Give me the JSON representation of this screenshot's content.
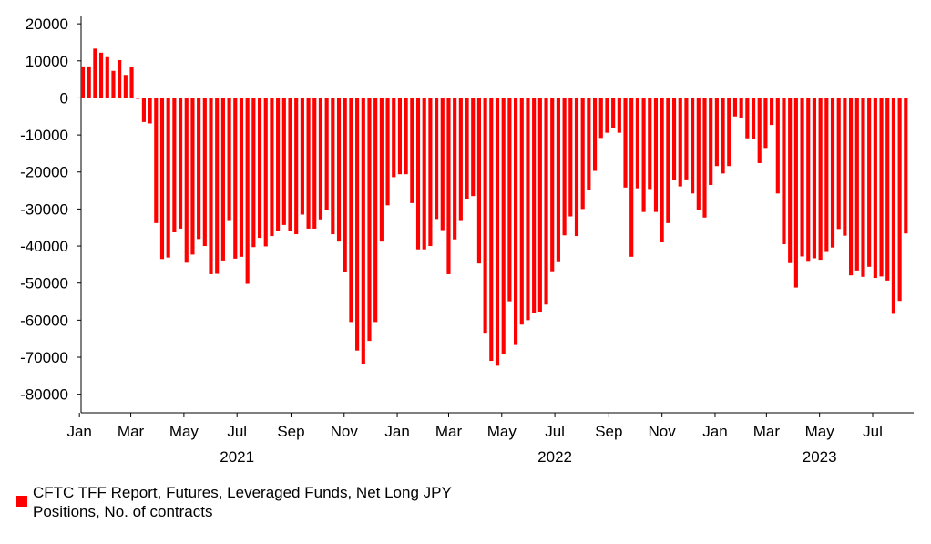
{
  "chart_data": {
    "type": "bar",
    "title": "",
    "xlabel": "",
    "ylabel": "",
    "ylim": [
      -85000,
      22000
    ],
    "yticks": [
      20000,
      10000,
      0,
      -10000,
      -20000,
      -30000,
      -40000,
      -50000,
      -60000,
      -70000,
      -80000
    ],
    "ytick_labels": [
      "20000",
      "10000",
      "0",
      "-10000",
      "-20000",
      "-30000",
      "-40000",
      "-50000",
      "-60000",
      "-70000",
      "-80000"
    ],
    "x_start": "2021-01-05",
    "x_end": "2023-08-15",
    "month_ticks": [
      {
        "label": "Jan",
        "date": "2021-01-01"
      },
      {
        "label": "Mar",
        "date": "2021-03-01"
      },
      {
        "label": "May",
        "date": "2021-05-01"
      },
      {
        "label": "Jul",
        "date": "2021-07-01"
      },
      {
        "label": "Sep",
        "date": "2021-09-01"
      },
      {
        "label": "Nov",
        "date": "2021-11-01"
      },
      {
        "label": "Jan",
        "date": "2022-01-01"
      },
      {
        "label": "Mar",
        "date": "2022-03-01"
      },
      {
        "label": "May",
        "date": "2022-05-01"
      },
      {
        "label": "Jul",
        "date": "2022-07-01"
      },
      {
        "label": "Sep",
        "date": "2022-09-01"
      },
      {
        "label": "Nov",
        "date": "2022-11-01"
      },
      {
        "label": "Jan",
        "date": "2023-01-01"
      },
      {
        "label": "Mar",
        "date": "2023-03-01"
      },
      {
        "label": "May",
        "date": "2023-05-01"
      },
      {
        "label": "Jul",
        "date": "2023-07-01"
      }
    ],
    "year_labels": [
      {
        "label": "2021",
        "date": "2021-07-01"
      },
      {
        "label": "2022",
        "date": "2022-07-01"
      },
      {
        "label": "2023",
        "date": "2023-05-01"
      }
    ],
    "series": [
      {
        "name": "CFTC TFF Report, Futures, Leveraged Funds, Net Long JPY Positions, No. of contracts",
        "color": "#ff0000",
        "start_date": "2021-01-05",
        "interval_days": 7,
        "values": [
          8500,
          8500,
          13300,
          12200,
          11000,
          7300,
          10200,
          6200,
          8300,
          0,
          -6500,
          -6900,
          -33800,
          -43500,
          -43100,
          -36300,
          -35300,
          -44500,
          -42300,
          -38100,
          -40000,
          -47600,
          -47500,
          -43900,
          -33000,
          -43400,
          -42900,
          -50200,
          -40300,
          -37800,
          -40100,
          -37300,
          -35900,
          -34300,
          -35900,
          -36800,
          -31500,
          -35300,
          -35300,
          -32800,
          -30300,
          -36800,
          -38800,
          -46900,
          -60500,
          -68200,
          -71800,
          -65600,
          -60500,
          -38800,
          -29000,
          -21400,
          -20600,
          -20600,
          -28400,
          -40900,
          -40900,
          -40000,
          -32700,
          -35700,
          -47600,
          -38200,
          -33000,
          -27200,
          -26500,
          -44700,
          -63400,
          -71000,
          -72300,
          -69200,
          -54900,
          -66700,
          -61200,
          -60000,
          -58000,
          -57700,
          -55800,
          -46800,
          -44100,
          -37100,
          -32000,
          -37300,
          -30000,
          -24800,
          -19700,
          -10800,
          -9400,
          -8100,
          -9400,
          -24200,
          -42900,
          -24400,
          -30800,
          -24600,
          -30800,
          -39000,
          -33800,
          -22200,
          -23900,
          -22000,
          -25800,
          -30300,
          -32300,
          -23500,
          -18400,
          -20400,
          -18400,
          -5000,
          -5400,
          -10900,
          -11100,
          -17600,
          -13500,
          -7300,
          -25800,
          -39500,
          -44600,
          -51200,
          -42800,
          -44000,
          -43300,
          -43700,
          -41600,
          -40400,
          -35400,
          -37200,
          -47900,
          -46600,
          -48300,
          -45600,
          -48600,
          -48200,
          -49300,
          -58300,
          -54800,
          -36600
        ]
      }
    ],
    "legend": {
      "label": "CFTC TFF Report, Futures, Leveraged Funds, Net Long JPY Positions, No. of contracts",
      "position": "bottom-left"
    }
  }
}
